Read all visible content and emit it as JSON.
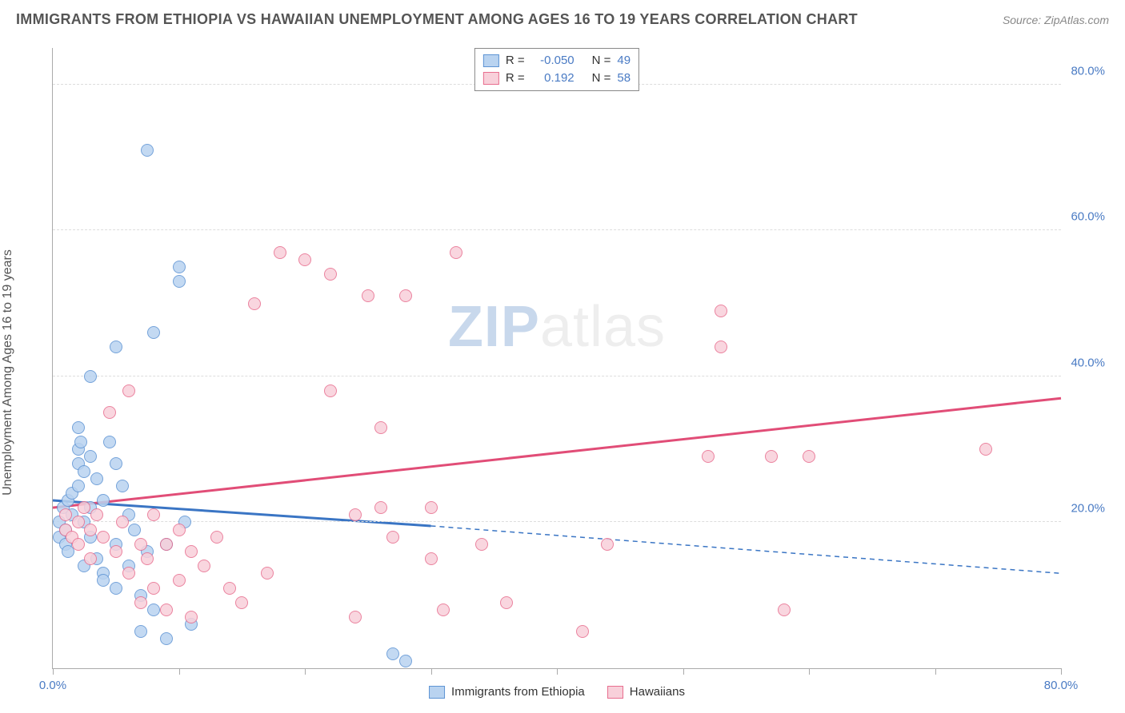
{
  "header": {
    "title": "IMMIGRANTS FROM ETHIOPIA VS HAWAIIAN UNEMPLOYMENT AMONG AGES 16 TO 19 YEARS CORRELATION CHART",
    "source_prefix": "Source: ",
    "source_name": "ZipAtlas.com"
  },
  "watermark": {
    "bold": "ZIP",
    "rest": "atlas"
  },
  "chart": {
    "type": "scatter",
    "y_axis_label": "Unemployment Among Ages 16 to 19 years",
    "xlim": [
      0,
      80
    ],
    "ylim": [
      0,
      85
    ],
    "x_ticks": [
      0,
      10,
      20,
      30,
      40,
      50,
      60,
      70,
      80
    ],
    "x_tick_labels": {
      "0": "0.0%",
      "80": "80.0%"
    },
    "y_grid": [
      20,
      40,
      60,
      80
    ],
    "y_tick_labels": {
      "20": "20.0%",
      "40": "40.0%",
      "60": "60.0%",
      "80": "80.0%"
    },
    "tick_label_color": "#4a7bc4",
    "grid_color": "#dddddd",
    "axis_color": "#aaaaaa",
    "background_color": "#ffffff",
    "marker_radius": 8,
    "series": [
      {
        "key": "ethiopia",
        "label": "Immigrants from Ethiopia",
        "fill": "#b9d3f0",
        "stroke": "#5e94d4",
        "r_label": "R = ",
        "r_value": "-0.050",
        "n_label": "N = ",
        "n_value": "49",
        "trend": {
          "x1": 0,
          "y1": 23,
          "x2_solid": 30,
          "y2_solid": 19.5,
          "x2": 80,
          "y2": 13,
          "color": "#3a75c4",
          "width": 3
        },
        "points": [
          [
            0.5,
            18
          ],
          [
            0.5,
            20
          ],
          [
            0.8,
            22
          ],
          [
            1,
            19
          ],
          [
            1,
            17
          ],
          [
            1.2,
            23
          ],
          [
            1.2,
            16
          ],
          [
            1.5,
            21
          ],
          [
            1.5,
            24
          ],
          [
            2,
            28
          ],
          [
            2,
            30
          ],
          [
            2,
            25
          ],
          [
            2.2,
            31
          ],
          [
            2.5,
            27
          ],
          [
            2.5,
            20
          ],
          [
            2.5,
            14
          ],
          [
            3,
            29
          ],
          [
            3,
            22
          ],
          [
            3,
            18
          ],
          [
            3.5,
            26
          ],
          [
            3.5,
            15
          ],
          [
            4,
            23
          ],
          [
            4,
            13
          ],
          [
            4.5,
            31
          ],
          [
            5,
            28
          ],
          [
            5,
            17
          ],
          [
            5,
            11
          ],
          [
            5.5,
            25
          ],
          [
            6,
            21
          ],
          [
            6,
            14
          ],
          [
            6.5,
            19
          ],
          [
            7,
            10
          ],
          [
            7,
            5
          ],
          [
            7.5,
            16
          ],
          [
            8,
            8
          ],
          [
            8,
            46
          ],
          [
            9,
            17
          ],
          [
            9,
            4
          ],
          [
            10,
            55
          ],
          [
            10,
            53
          ],
          [
            10.5,
            20
          ],
          [
            7.5,
            71
          ],
          [
            5,
            44
          ],
          [
            3,
            40
          ],
          [
            4,
            12
          ],
          [
            11,
            6
          ],
          [
            27,
            2
          ],
          [
            28,
            1
          ],
          [
            2,
            33
          ]
        ]
      },
      {
        "key": "hawaiians",
        "label": "Hawaiians",
        "fill": "#f8d0da",
        "stroke": "#e86e8f",
        "r_label": "R = ",
        "r_value": "0.192",
        "n_label": "N = ",
        "n_value": "58",
        "trend": {
          "x1": 0,
          "y1": 22,
          "x2_solid": 80,
          "y2_solid": 37,
          "x2": 80,
          "y2": 37,
          "color": "#e14d77",
          "width": 3
        },
        "points": [
          [
            1,
            19
          ],
          [
            1,
            21
          ],
          [
            1.5,
            18
          ],
          [
            2,
            20
          ],
          [
            2,
            17
          ],
          [
            2.5,
            22
          ],
          [
            3,
            19
          ],
          [
            3,
            15
          ],
          [
            3.5,
            21
          ],
          [
            4,
            18
          ],
          [
            4.5,
            35
          ],
          [
            5,
            16
          ],
          [
            5.5,
            20
          ],
          [
            6,
            13
          ],
          [
            6,
            38
          ],
          [
            7,
            17
          ],
          [
            7,
            9
          ],
          [
            7.5,
            15
          ],
          [
            8,
            21
          ],
          [
            8,
            11
          ],
          [
            9,
            17
          ],
          [
            9,
            8
          ],
          [
            10,
            19
          ],
          [
            10,
            12
          ],
          [
            11,
            16
          ],
          [
            11,
            7
          ],
          [
            12,
            14
          ],
          [
            13,
            18
          ],
          [
            14,
            11
          ],
          [
            15,
            9
          ],
          [
            16,
            50
          ],
          [
            17,
            13
          ],
          [
            18,
            57
          ],
          [
            20,
            56
          ],
          [
            22,
            38
          ],
          [
            22,
            54
          ],
          [
            24,
            21
          ],
          [
            24,
            7
          ],
          [
            25,
            51
          ],
          [
            26,
            33
          ],
          [
            26,
            22
          ],
          [
            27,
            18
          ],
          [
            28,
            51
          ],
          [
            30,
            22
          ],
          [
            30,
            15
          ],
          [
            31,
            8
          ],
          [
            32,
            57
          ],
          [
            34,
            17
          ],
          [
            36,
            9
          ],
          [
            42,
            5
          ],
          [
            44,
            17
          ],
          [
            52,
            29
          ],
          [
            53,
            44
          ],
          [
            53,
            49
          ],
          [
            57,
            29
          ],
          [
            58,
            8
          ],
          [
            60,
            29
          ],
          [
            74,
            30
          ]
        ]
      }
    ]
  }
}
